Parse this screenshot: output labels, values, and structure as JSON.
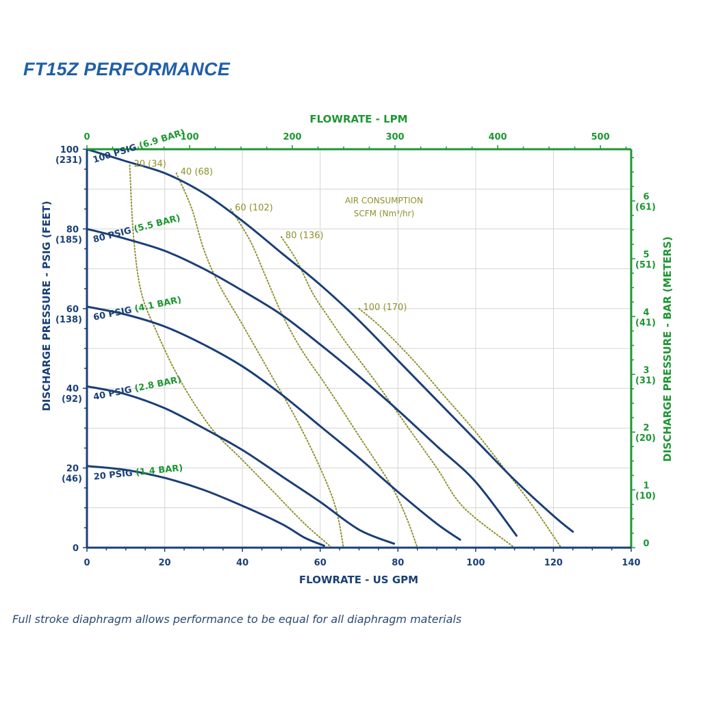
{
  "title": "FT15Z PERFORMANCE",
  "footnote": "Full stroke diaphragm allows performance to be equal for all diaphragm materials",
  "colors": {
    "navy": "#1a3f77",
    "green": "#1e9633",
    "olive": "#8f8f2a",
    "grid": "#d4d4d4",
    "title_blue": "#1f5fa8"
  },
  "chart_data": {
    "type": "line",
    "xlabel": "FLOWRATE - US GPM",
    "ylabel": "DISCHARGE PRESSURE - PSIG (FEET)",
    "x2label": "FLOWRATE - LPM",
    "y2label": "DISCHARGE PRESSURE - BAR (METERS)",
    "xlim": [
      0,
      140
    ],
    "ylim": [
      0,
      100
    ],
    "x_ticks": [
      "0",
      "20",
      "40",
      "60",
      "80",
      "100",
      "120",
      "140"
    ],
    "y_ticks": [
      {
        "value": 0,
        "label": "0",
        "sub": ""
      },
      {
        "value": 20,
        "label": "20",
        "sub": "(46)"
      },
      {
        "value": 40,
        "label": "40",
        "sub": "(92)"
      },
      {
        "value": 60,
        "label": "60",
        "sub": "(138)"
      },
      {
        "value": 80,
        "label": "80",
        "sub": "(185)"
      },
      {
        "value": 100,
        "label": "100",
        "sub": "(231)"
      }
    ],
    "x2_ticks": [
      {
        "lpm": 0,
        "label": "0"
      },
      {
        "lpm": 100,
        "label": "100"
      },
      {
        "lpm": 200,
        "label": "200"
      },
      {
        "lpm": 300,
        "label": "300"
      },
      {
        "lpm": 400,
        "label": "400"
      },
      {
        "lpm": 500,
        "label": "500"
      }
    ],
    "y2_ticks": [
      {
        "bar": 0,
        "label": "0",
        "sub": ""
      },
      {
        "bar": 1,
        "label": "1",
        "sub": "(10)"
      },
      {
        "bar": 2,
        "label": "2",
        "sub": "(20)"
      },
      {
        "bar": 3,
        "label": "3",
        "sub": "(31)"
      },
      {
        "bar": 4,
        "label": "4",
        "sub": "(41)"
      },
      {
        "bar": 5,
        "label": "5",
        "sub": "(51)"
      },
      {
        "bar": 6,
        "label": "6",
        "sub": "(61)"
      }
    ],
    "grid": true,
    "series": [
      {
        "name": "100 PSIG",
        "name_metric": "(6.9 BAR)",
        "points": [
          [
            0,
            100
          ],
          [
            10,
            97
          ],
          [
            20,
            94
          ],
          [
            30,
            89
          ],
          [
            40,
            82
          ],
          [
            50,
            74
          ],
          [
            60,
            66
          ],
          [
            70,
            57
          ],
          [
            80,
            47
          ],
          [
            90,
            37
          ],
          [
            100,
            27
          ],
          [
            110,
            17
          ],
          [
            120,
            8
          ],
          [
            125,
            4
          ]
        ]
      },
      {
        "name": "80 PSIG",
        "name_metric": "(5.5 BAR)",
        "points": [
          [
            0,
            80
          ],
          [
            10,
            77.5
          ],
          [
            20,
            74.5
          ],
          [
            30,
            70
          ],
          [
            40,
            64.5
          ],
          [
            50,
            58.5
          ],
          [
            60,
            51
          ],
          [
            70,
            43
          ],
          [
            80,
            34.5
          ],
          [
            90,
            25.5
          ],
          [
            100,
            16.5
          ],
          [
            110.5,
            3
          ]
        ]
      },
      {
        "name": "60 PSIG",
        "name_metric": "(4.1 BAR)",
        "points": [
          [
            0,
            60.5
          ],
          [
            10,
            58.5
          ],
          [
            20,
            55.5
          ],
          [
            30,
            51
          ],
          [
            40,
            45.5
          ],
          [
            50,
            38.5
          ],
          [
            60,
            30.5
          ],
          [
            70,
            22.5
          ],
          [
            80,
            14
          ],
          [
            90,
            6
          ],
          [
            96,
            2
          ]
        ]
      },
      {
        "name": "40 PSIG",
        "name_metric": "(2.8 BAR)",
        "points": [
          [
            0,
            40.5
          ],
          [
            10,
            38.5
          ],
          [
            20,
            35
          ],
          [
            30,
            30
          ],
          [
            40,
            24.5
          ],
          [
            50,
            18
          ],
          [
            60,
            11.5
          ],
          [
            70,
            4.5
          ],
          [
            79,
            1
          ]
        ]
      },
      {
        "name": "20 PSIG",
        "name_metric": "(1.4 BAR)",
        "points": [
          [
            0,
            20.5
          ],
          [
            10,
            19.5
          ],
          [
            20,
            17.5
          ],
          [
            30,
            14.5
          ],
          [
            40,
            10.5
          ],
          [
            50,
            6
          ],
          [
            56,
            2.5
          ],
          [
            61,
            0.5
          ]
        ]
      }
    ],
    "air_consumption": {
      "title_line1": "AIR CONSUMPTION",
      "title_line2": "SCFM (Nm³/hr)",
      "curves": [
        {
          "label": "20 (34)",
          "points": [
            [
              11,
              96
            ],
            [
              12,
              78
            ],
            [
              14,
              64
            ],
            [
              18,
              54
            ],
            [
              24,
              42
            ],
            [
              32,
              30
            ],
            [
              40,
              22
            ],
            [
              48,
              14
            ],
            [
              56,
              6
            ],
            [
              63,
              0
            ]
          ]
        },
        {
          "label": "40 (68)",
          "points": [
            [
              23,
              94
            ],
            [
              27,
              85
            ],
            [
              30,
              75
            ],
            [
              34,
              66
            ],
            [
              40,
              56
            ],
            [
              47,
              44
            ],
            [
              54,
              32
            ],
            [
              60,
              20
            ],
            [
              64,
              10
            ],
            [
              66,
              0
            ]
          ]
        },
        {
          "label": "60 (102)",
          "points": [
            [
              37,
              85
            ],
            [
              42,
              77
            ],
            [
              46,
              68
            ],
            [
              50,
              59
            ],
            [
              55,
              50
            ],
            [
              62,
              40
            ],
            [
              70,
              28
            ],
            [
              78,
              16
            ],
            [
              82,
              8
            ],
            [
              85,
              0
            ]
          ]
        },
        {
          "label": "80 (136)",
          "points": [
            [
              50,
              78
            ],
            [
              54,
              72
            ],
            [
              58,
              64
            ],
            [
              62,
              58
            ],
            [
              67,
              51
            ],
            [
              74,
              42
            ],
            [
              82,
              31
            ],
            [
              90,
              20
            ],
            [
              97,
              10
            ],
            [
              110,
              0
            ]
          ]
        },
        {
          "label": "100 (170)",
          "points": [
            [
              70,
              60
            ],
            [
              76,
              55
            ],
            [
              84,
              47
            ],
            [
              92,
              38
            ],
            [
              100,
              29
            ],
            [
              108,
              19
            ],
            [
              115,
              10
            ],
            [
              122,
              0
            ]
          ]
        }
      ]
    }
  }
}
